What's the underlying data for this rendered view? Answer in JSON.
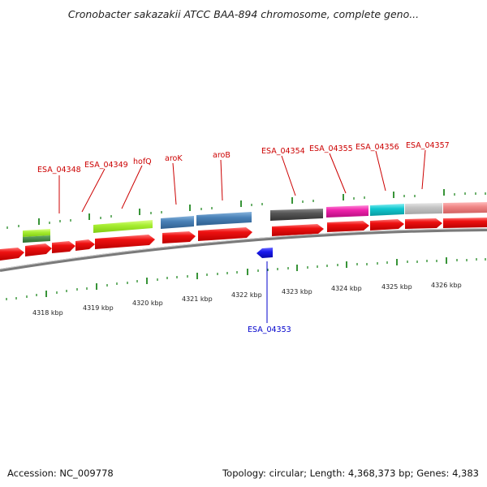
{
  "title": "Cronobacter sakazakii ATCC BAA-894 chromosome, complete geno...",
  "footer": {
    "accession": "Accession: NC_009778",
    "summary": "Topology: circular; Length: 4,368,373 bp; Genes: 4,383"
  },
  "gene_labels": [
    "ESA_04348",
    "ESA_04349",
    "hofQ",
    "aroK",
    "aroB",
    "ESA_04354",
    "ESA_04355",
    "ESA_04356",
    "ESA_04357"
  ],
  "minus_label": "ESA_04353",
  "scale_labels": [
    "4318 kbp",
    "4319 kbp",
    "4320 kbp",
    "4321 kbp",
    "4322 kbp",
    "4323 kbp",
    "4324 kbp",
    "4325 kbp",
    "4326 kbp"
  ],
  "colors": {
    "cds": "#ee1111",
    "label_red": "#cc0000",
    "label_blue": "#0000cc",
    "tick_green": "#228822",
    "backbone": "#8a8a8a",
    "lime": "#a8ee33",
    "steel_blue": "#4a82b8",
    "dark_gray": "#555555",
    "magenta": "#ee22aa",
    "cyan": "#11c8d0",
    "light_gray": "#c4c4c4",
    "salmon": "#f08888",
    "minus_strand": "#1a1aee"
  }
}
